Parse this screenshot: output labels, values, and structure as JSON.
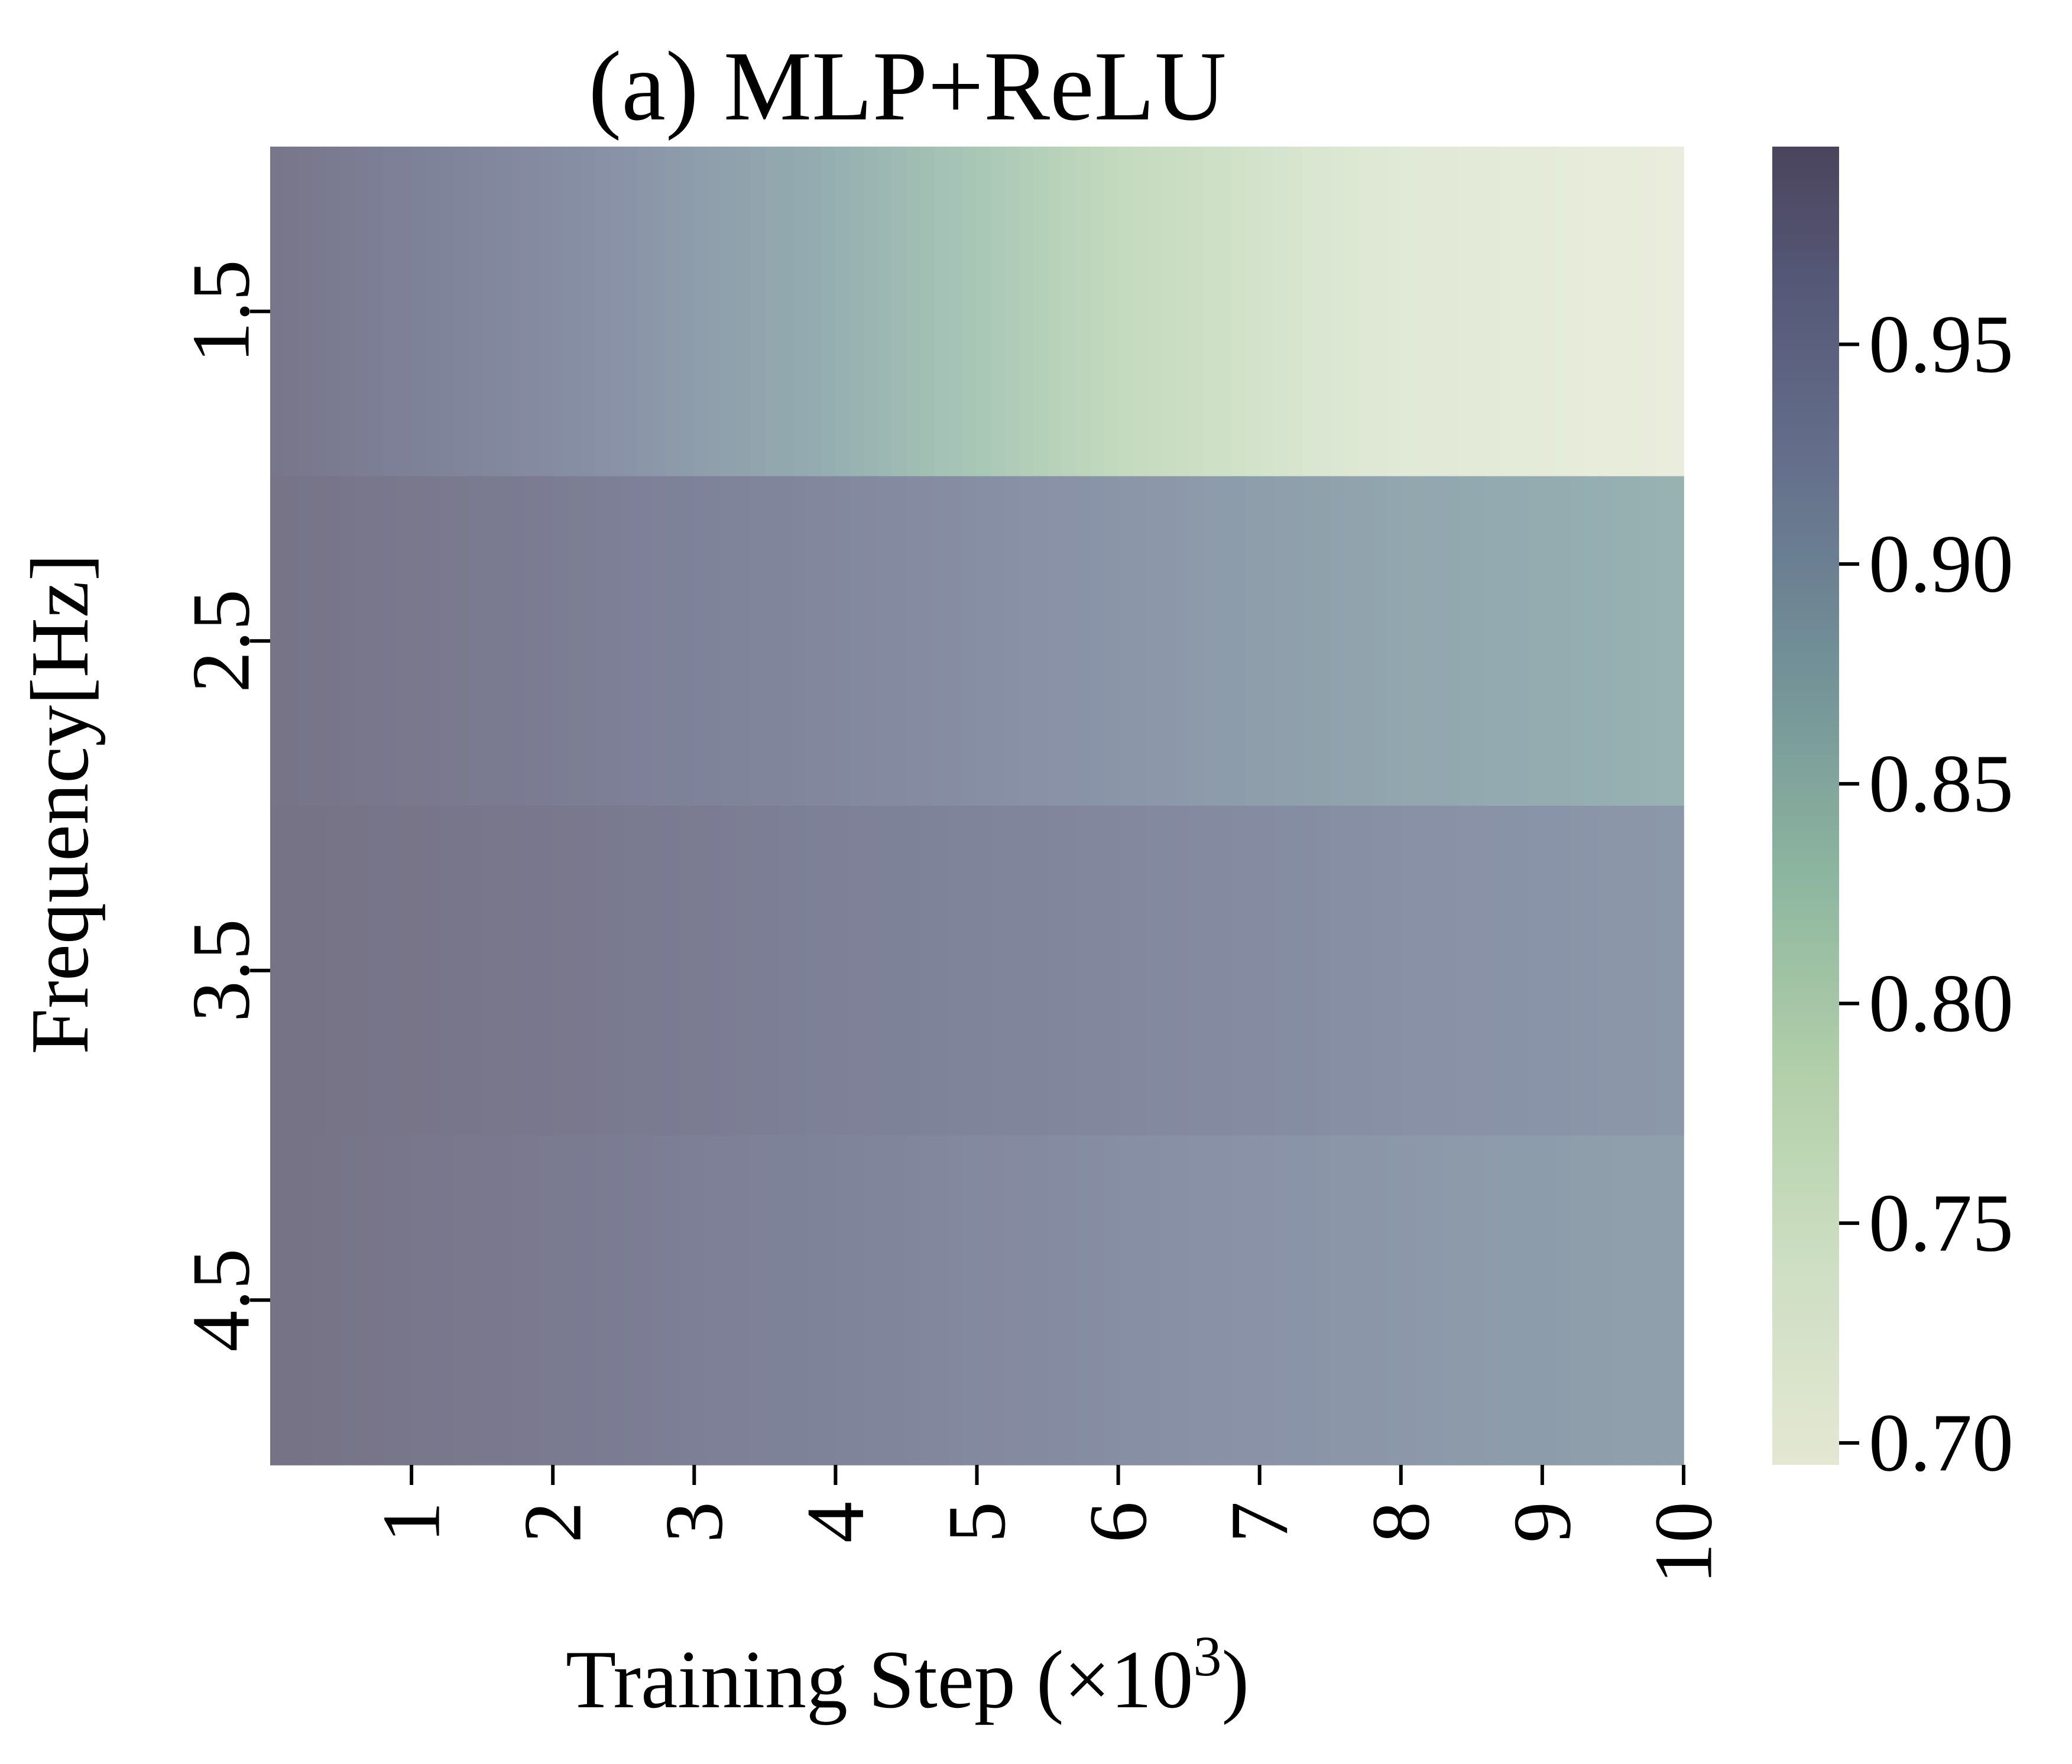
{
  "chart_data": {
    "type": "heatmap",
    "title": "(a) MLP+ReLU",
    "xlabel": "Training Step (×10",
    "xlabel_superscript": "3",
    "xlabel_suffix": ")",
    "ylabel": "Frequency[Hz]",
    "x_ticks": [
      "1",
      "2",
      "3",
      "4",
      "5",
      "6",
      "7",
      "8",
      "9",
      "10"
    ],
    "y_ticks": [
      "1.5",
      "2.5",
      "3.5",
      "4.5"
    ],
    "vmin": 0.695,
    "vmax": 0.995,
    "colorbar_ticks": [
      {
        "value": 0.7,
        "label": "0.70"
      },
      {
        "value": 0.75,
        "label": "0.75"
      },
      {
        "value": 0.8,
        "label": "0.80"
      },
      {
        "value": 0.85,
        "label": "0.85"
      },
      {
        "value": 0.9,
        "label": "0.90"
      },
      {
        "value": 0.95,
        "label": "0.95"
      }
    ],
    "colormap": [
      {
        "t": 0.0,
        "color": "#dfe3ca"
      },
      {
        "t": 0.15,
        "color": "#c5d9b8"
      },
      {
        "t": 0.3,
        "color": "#a3c69a"
      },
      {
        "t": 0.45,
        "color": "#78a88e"
      },
      {
        "t": 0.6,
        "color": "#5a7f86"
      },
      {
        "t": 0.75,
        "color": "#4a5878"
      },
      {
        "t": 0.9,
        "color": "#363a5e"
      },
      {
        "t": 1.0,
        "color": "#2b2340"
      }
    ],
    "cell_alpha": 0.65,
    "columns_per_row": 100,
    "rows": [
      {
        "label": "1.5",
        "x": [
          0,
          2,
          4,
          6,
          8,
          10
        ],
        "value": [
          0.985,
          0.935,
          0.87,
          0.785,
          0.72,
          0.695
        ]
      },
      {
        "label": "2.5",
        "x": [
          0,
          2,
          4,
          6,
          8,
          10
        ],
        "value": [
          0.988,
          0.97,
          0.945,
          0.915,
          0.885,
          0.865
        ]
      },
      {
        "label": "3.5",
        "x": [
          0,
          2,
          4,
          6,
          8,
          10
        ],
        "value": [
          0.99,
          0.98,
          0.962,
          0.945,
          0.925,
          0.91
        ]
      },
      {
        "label": "4.5",
        "x": [
          0,
          2,
          4,
          6,
          8,
          10
        ],
        "value": [
          0.99,
          0.975,
          0.955,
          0.93,
          0.91,
          0.895
        ]
      }
    ]
  }
}
